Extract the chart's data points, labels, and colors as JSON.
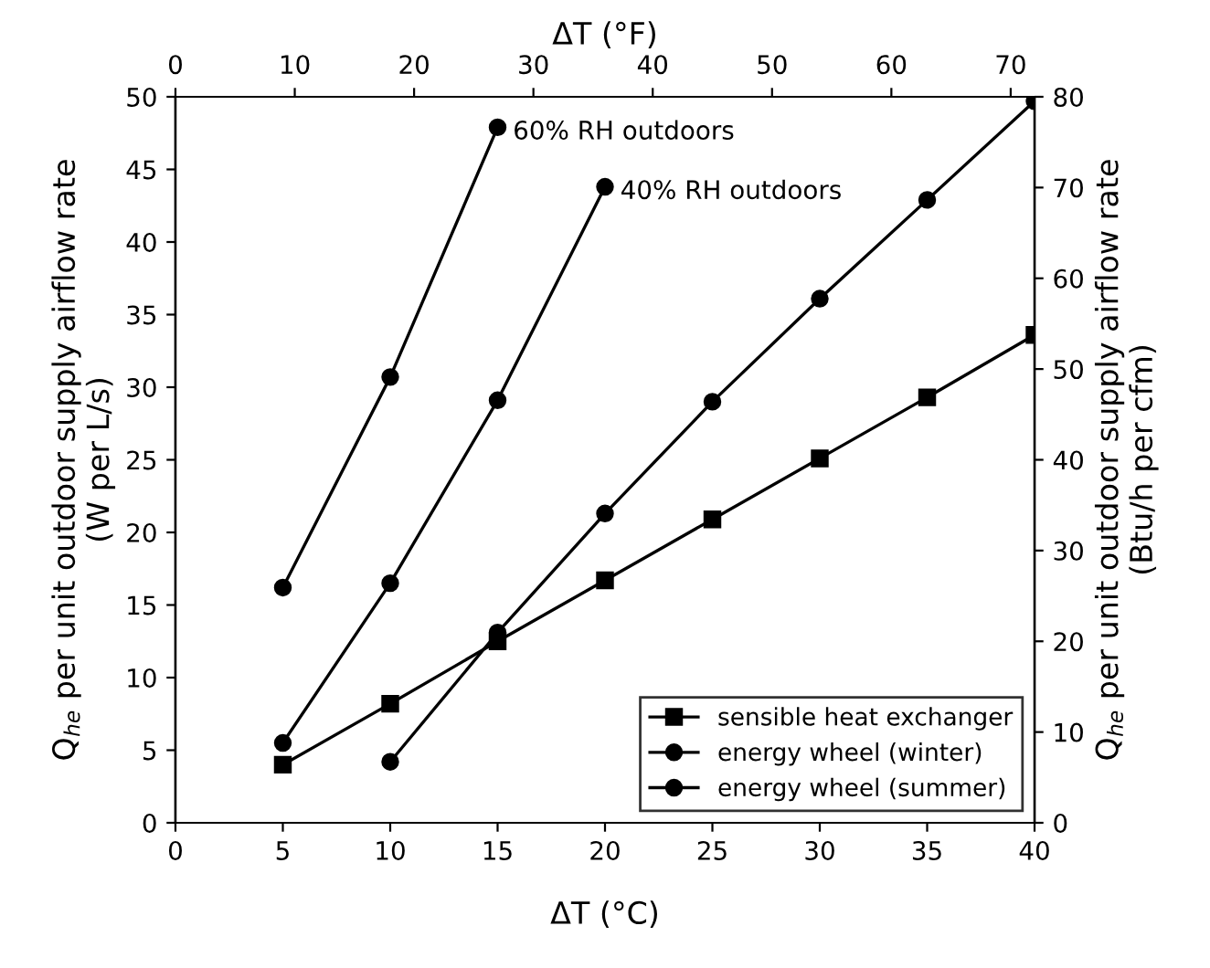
{
  "chart_data": {
    "type": "line",
    "xlabel": "ΔT (°C)",
    "x2label": "ΔT (°F)",
    "ylabel": "Q$_{he}$ per unit outdoor supply airflow rate\n(W per L/s)",
    "y2label": "Q$_{he}$ per unit outdoor supply airflow rate\n(Btu/h per cfm)",
    "xlim": [
      0,
      40
    ],
    "xticks": [
      0,
      5,
      10,
      15,
      20,
      25,
      30,
      35,
      40
    ],
    "ylim": [
      0,
      50
    ],
    "yticks": [
      0,
      5,
      10,
      15,
      20,
      25,
      30,
      35,
      40,
      45,
      50
    ],
    "x2lim": [
      0,
      72
    ],
    "x2ticks": [
      0,
      10,
      20,
      30,
      40,
      50,
      60,
      70
    ],
    "y2lim": [
      0,
      80
    ],
    "y2ticks": [
      0,
      10,
      20,
      30,
      40,
      50,
      60,
      70,
      80
    ],
    "grid": false,
    "legend": "bottom right",
    "line_style": "solid",
    "series": [
      {
        "name": "sensible heat exchanger",
        "color": "#000000",
        "marker": "square",
        "x": [
          5,
          10,
          15,
          20,
          25,
          30,
          35,
          40
        ],
        "values": [
          4.0,
          8.2,
          12.5,
          16.7,
          20.9,
          25.1,
          29.3,
          33.6
        ]
      },
      {
        "name": "energy wheel (winter)",
        "color": "#000000",
        "marker": "circle",
        "x": [
          10,
          15,
          20,
          25,
          30,
          35,
          40
        ],
        "values": [
          4.2,
          13.1,
          21.3,
          29.0,
          36.1,
          42.9,
          49.7
        ]
      },
      {
        "name": "energy wheel (summer)",
        "color": "#000000",
        "marker": "circle",
        "x": [
          5,
          10,
          15,
          20
        ],
        "values": [
          5.5,
          16.5,
          29.1,
          43.8
        ]
      },
      {
        "color": "#000000",
        "marker": "circle",
        "x": [
          5,
          10,
          15
        ],
        "values": [
          16.2,
          30.7,
          47.9
        ]
      }
    ],
    "annotations": [
      {
        "text": "60% RH outdoors",
        "x": 15,
        "y": 47.9
      },
      {
        "text": "40% RH outdoors",
        "x": 20,
        "y": 43.8
      }
    ]
  }
}
